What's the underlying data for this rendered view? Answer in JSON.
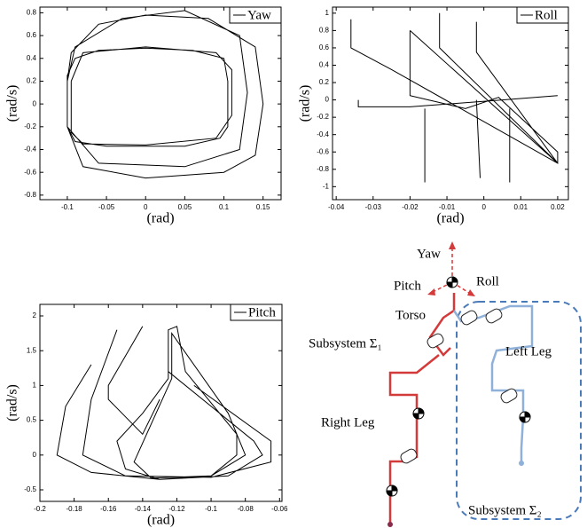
{
  "chart_data": [
    {
      "type": "line",
      "xlabel": "(rad)",
      "ylabel": "(rad/s)",
      "legend": "upper right",
      "xlim": [
        -0.135,
        0.173
      ],
      "ylim": [
        -0.84,
        0.85
      ],
      "xticks": [
        -0.1,
        -0.05,
        0,
        0.05,
        0.1,
        0.15
      ],
      "yticks": [
        -0.8,
        -0.6,
        -0.4,
        -0.2,
        0,
        0.2,
        0.4,
        0.6,
        0.8
      ],
      "series": [
        {
          "name": "Yaw",
          "color": "#000000",
          "x": [
            -0.1,
            -0.1,
            -0.09,
            -0.05,
            0.05,
            0.095,
            0.105,
            0.105,
            0.1,
            0.06,
            0,
            -0.06,
            -0.09,
            -0.1,
            null,
            -0.1,
            -0.08,
            0,
            0.1,
            0.14,
            0.15,
            0.14,
            0.08,
            0,
            -0.06,
            -0.095,
            -0.1,
            null,
            -0.1,
            -0.06,
            0.05,
            0.12,
            0.13,
            0.12,
            0.05,
            -0.03,
            -0.09,
            -0.1,
            null,
            -0.095,
            -0.095,
            -0.08,
            0,
            0.09,
            0.11,
            0.11,
            0.09,
            0,
            -0.08,
            -0.095
          ],
          "y": [
            0.25,
            -0.2,
            -0.33,
            -0.37,
            -0.37,
            -0.3,
            -0.2,
            0.2,
            0.4,
            0.47,
            0.49,
            0.47,
            0.4,
            0.25,
            null,
            -0.2,
            -0.55,
            -0.65,
            -0.6,
            -0.45,
            0,
            0.5,
            0.75,
            0.78,
            0.7,
            0.45,
            0.2,
            null,
            -0.2,
            -0.52,
            -0.55,
            -0.4,
            0.1,
            0.6,
            0.82,
            0.75,
            0.5,
            0.2,
            null,
            0.2,
            -0.25,
            -0.35,
            -0.36,
            -0.3,
            -0.1,
            0.3,
            0.45,
            0.5,
            0.45,
            0.2
          ]
        }
      ]
    },
    {
      "type": "line",
      "xlabel": "(rad)",
      "ylabel": "(rad/s)",
      "legend": "upper right",
      "xlim": [
        -0.041,
        0.0229
      ],
      "ylim": [
        -1.15,
        1.07
      ],
      "xticks": [
        -0.04,
        -0.03,
        -0.02,
        -0.01,
        0,
        0.01,
        0.02
      ],
      "yticks": [
        -1,
        -0.8,
        -0.6,
        -0.4,
        -0.2,
        0,
        0.2,
        0.4,
        0.6,
        0.8,
        1
      ],
      "series": [
        {
          "name": "Roll",
          "color": "#000000",
          "x": [
            -0.02,
            0.02,
            0.02,
            0.004,
            -0.005,
            -0.015,
            -0.02,
            -0.02,
            null,
            -0.036,
            -0.036,
            -0.025,
            0.02,
            null,
            -0.012,
            -0.012,
            0.02,
            null,
            -0.002,
            -0.002,
            0.02,
            null,
            -0.034,
            -0.034,
            -0.02,
            0.005,
            0.02,
            null,
            -0.016,
            -0.016,
            null,
            -0.001,
            -0.002,
            null,
            0.007,
            0.007
          ],
          "y": [
            0.8,
            -0.73,
            -0.6,
            0.03,
            -0.1,
            0,
            0.05,
            0.8,
            null,
            0.93,
            0.6,
            0.35,
            -0.73,
            null,
            1.0,
            0.6,
            -0.73,
            null,
            0.9,
            0.55,
            -0.73,
            null,
            0,
            -0.08,
            -0.08,
            0,
            0.05,
            null,
            -0.95,
            -0.1,
            null,
            -0.9,
            0,
            null,
            -0.95,
            -0.1
          ]
        }
      ]
    },
    {
      "type": "line",
      "xlabel": "(rad)",
      "ylabel": "(rad/s)",
      "legend": "upper right",
      "xlim": [
        -0.2,
        -0.0586
      ],
      "ylim": [
        -0.666,
        2.166
      ],
      "xticks": [
        -0.2,
        -0.18,
        -0.16,
        -0.14,
        -0.12,
        -0.1,
        -0.08,
        -0.06
      ],
      "yticks": [
        -0.5,
        0,
        0.5,
        1,
        1.5,
        2
      ],
      "series": [
        {
          "name": "Pitch",
          "color": "#000000",
          "x": [
            -0.125,
            -0.125,
            -0.12,
            -0.115,
            -0.085,
            -0.085,
            -0.1,
            -0.13,
            -0.15,
            -0.155,
            -0.14,
            -0.125,
            null,
            -0.17,
            -0.185,
            -0.19,
            -0.17,
            -0.13,
            -0.09,
            -0.07,
            -0.075,
            -0.1,
            -0.125,
            null,
            -0.155,
            -0.17,
            -0.175,
            -0.15,
            -0.1,
            -0.065,
            -0.065,
            -0.11,
            null,
            -0.14,
            -0.16,
            -0.16,
            -0.14,
            -0.13,
            null,
            -0.123,
            -0.123,
            -0.09,
            -0.08,
            -0.1,
            -0.135,
            -0.145,
            -0.123
          ],
          "y": [
            1.1,
            1.8,
            1.85,
            1.2,
            0.3,
            0,
            -0.3,
            -0.35,
            -0.2,
            0.2,
            0.6,
            1.1,
            null,
            1.3,
            0.7,
            0,
            -0.25,
            -0.35,
            -0.3,
            0,
            0.2,
            0.7,
            1.2,
            null,
            1.8,
            0.8,
            0,
            -0.3,
            -0.32,
            -0.1,
            0.2,
            1.0,
            null,
            1.85,
            1.0,
            0.8,
            0.3,
            0.8,
            null,
            1.1,
            1.75,
            0.6,
            0,
            -0.3,
            -0.33,
            -0.1,
            1.1
          ]
        }
      ]
    }
  ],
  "diagram": {
    "labels": [
      "Yaw",
      "Pitch",
      "Roll",
      "Torso",
      "Subsystem Σ₁",
      "Left Leg",
      "Right Leg",
      "Subsystem Σ₂"
    ]
  }
}
